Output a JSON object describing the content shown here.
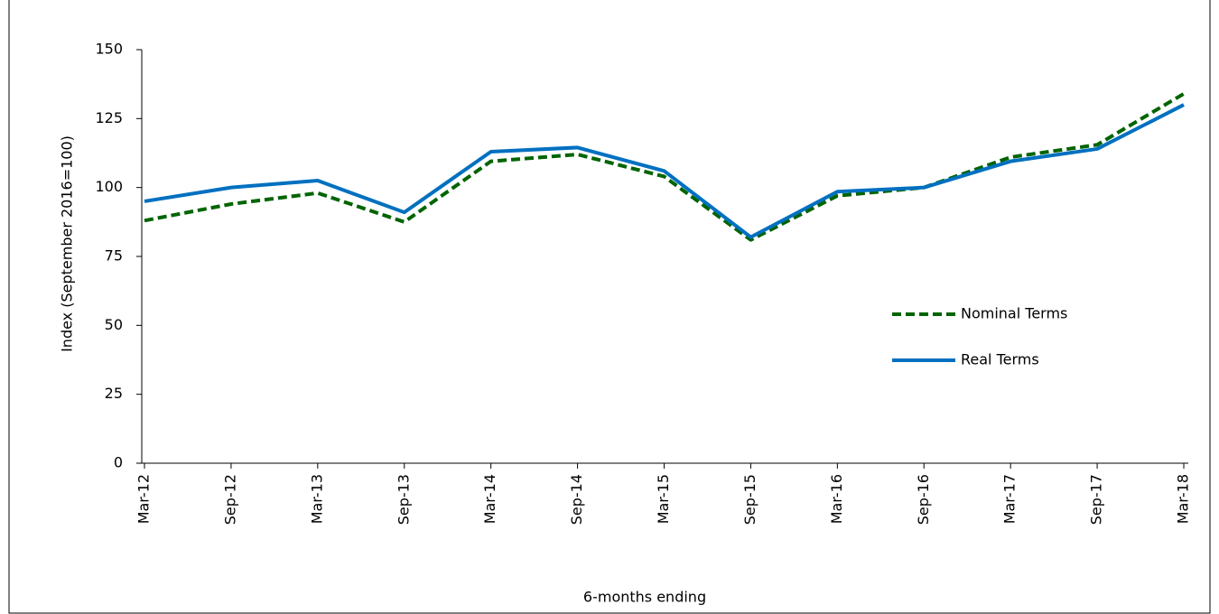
{
  "chart_data": {
    "type": "line",
    "x_label": "6-months ending",
    "y_label": "Index (September 2016=100)",
    "categories": [
      "Mar-12",
      "Sep-12",
      "Mar-13",
      "Sep-13",
      "Mar-14",
      "Sep-14",
      "Mar-15",
      "Sep-15",
      "Mar-16",
      "Sep-16",
      "Mar-17",
      "Sep-17",
      "Mar-18"
    ],
    "series": [
      {
        "name": "Nominal Terms",
        "color": "#006400",
        "dashed": true,
        "values": [
          88,
          94,
          98,
          87.5,
          109.5,
          112,
          104,
          81,
          97,
          100,
          111,
          115.5,
          134
        ]
      },
      {
        "name": "Real Terms",
        "color": "#0070c0",
        "dashed": false,
        "values": [
          95,
          100,
          102.5,
          91,
          113,
          114.5,
          106,
          82,
          98.5,
          100,
          109.5,
          114,
          130
        ]
      }
    ],
    "ylim": [
      0,
      150
    ],
    "yticks": [
      0,
      25,
      50,
      75,
      100,
      125,
      150
    ],
    "grid": false
  }
}
